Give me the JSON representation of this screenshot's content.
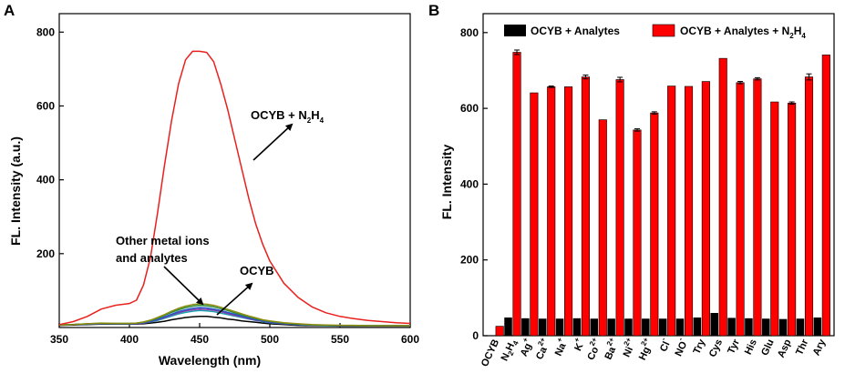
{
  "chart_data": [
    {
      "panel": "A",
      "type": "line",
      "xlabel": "Wavelength (nm)",
      "ylabel": "FL. Intensity (a.u.)",
      "xlim": [
        350,
        600
      ],
      "ylim": [
        0,
        850
      ],
      "xticks": [
        350,
        400,
        450,
        500,
        550,
        600
      ],
      "yticks": [
        200,
        400,
        600,
        800
      ],
      "x": [
        350,
        360,
        370,
        380,
        390,
        400,
        405,
        410,
        415,
        420,
        425,
        430,
        435,
        440,
        445,
        450,
        455,
        460,
        465,
        470,
        475,
        480,
        485,
        490,
        495,
        500,
        510,
        520,
        530,
        540,
        550,
        560,
        570,
        580,
        590,
        600
      ],
      "series": [
        {
          "name": "OCYB + N2H4",
          "color": "#e8201e",
          "values": [
            8,
            16,
            30,
            50,
            60,
            65,
            74,
            115,
            190,
            310,
            440,
            560,
            660,
            725,
            748,
            748,
            745,
            720,
            660,
            590,
            510,
            430,
            350,
            280,
            225,
            180,
            120,
            82,
            56,
            40,
            30,
            24,
            19,
            16,
            13,
            11
          ]
        },
        {
          "name": "analyte-olive",
          "color": "#8c8c10",
          "values": [
            7,
            8,
            10,
            12,
            11,
            11,
            12,
            15,
            20,
            27,
            35,
            44,
            52,
            58,
            62,
            64,
            63,
            60,
            55,
            49,
            43,
            37,
            31,
            26,
            21,
            18,
            13,
            10,
            8,
            7,
            6,
            6,
            5,
            5,
            5,
            5
          ]
        },
        {
          "name": "analyte-green",
          "color": "#2a8c3a",
          "values": [
            7,
            8,
            10,
            11,
            11,
            11,
            12,
            14,
            19,
            25,
            33,
            41,
            48,
            54,
            58,
            60,
            59,
            56,
            51,
            46,
            40,
            34,
            29,
            24,
            20,
            17,
            12,
            9,
            7,
            6,
            6,
            5,
            5,
            5,
            5,
            5
          ]
        },
        {
          "name": "analyte-blue",
          "color": "#2456c8",
          "values": [
            7,
            8,
            9,
            11,
            10,
            10,
            11,
            13,
            17,
            22,
            29,
            36,
            43,
            48,
            52,
            54,
            53,
            50,
            46,
            41,
            36,
            31,
            26,
            22,
            18,
            15,
            11,
            8,
            7,
            6,
            5,
            5,
            5,
            5,
            5,
            5
          ]
        },
        {
          "name": "analyte-purple",
          "color": "#8a3aa8",
          "values": [
            7,
            8,
            9,
            10,
            10,
            10,
            10,
            12,
            16,
            21,
            27,
            34,
            40,
            45,
            48,
            50,
            49,
            47,
            43,
            38,
            33,
            29,
            24,
            20,
            17,
            14,
            10,
            8,
            6,
            6,
            5,
            5,
            5,
            5,
            5,
            5
          ]
        },
        {
          "name": "analyte-teal",
          "color": "#1aa0b0",
          "values": [
            7,
            8,
            9,
            10,
            10,
            10,
            10,
            12,
            15,
            19,
            25,
            31,
            37,
            41,
            44,
            46,
            45,
            43,
            39,
            35,
            31,
            27,
            23,
            19,
            16,
            13,
            10,
            8,
            6,
            5,
            5,
            5,
            5,
            5,
            5,
            5
          ]
        },
        {
          "name": "OCYB",
          "color": "#000000",
          "values": [
            6,
            7,
            8,
            9,
            9,
            9,
            9,
            10,
            12,
            14,
            17,
            21,
            24,
            27,
            29,
            30,
            30,
            28,
            26,
            23,
            21,
            18,
            16,
            14,
            12,
            10,
            8,
            6,
            5,
            5,
            4,
            4,
            4,
            4,
            4,
            4
          ]
        }
      ],
      "annotations": [
        {
          "text": "OCYB + N",
          "sub1": "2",
          "mid": "H",
          "sub2": "4"
        },
        {
          "text": "Other metal ions"
        },
        {
          "text": "and analytes"
        },
        {
          "text": "OCYB"
        }
      ]
    },
    {
      "panel": "B",
      "type": "bar",
      "ylabel": "FL. Intensity",
      "ylim": [
        0,
        850
      ],
      "yticks": [
        0,
        200,
        400,
        600,
        800
      ],
      "legend": {
        "black": "OCYB + Analytes",
        "red": "OCYB + Analytes + N",
        "red_sub1": "2",
        "red_mid": "H",
        "red_sub2": "4"
      },
      "categories": [
        {
          "base": "OCYB",
          "sup": "",
          "sub": ""
        },
        {
          "base": "N",
          "sub": "2",
          "base2": "H",
          "sub2": "4",
          "sup": ""
        },
        {
          "base": "Ag",
          "sup": "+"
        },
        {
          "base": "Ca",
          "sup": "2+"
        },
        {
          "base": "Na",
          "sup": "+"
        },
        {
          "base": "K",
          "sup": "+"
        },
        {
          "base": "Co",
          "sup": "2+"
        },
        {
          "base": "Ba",
          "sup": "2+"
        },
        {
          "base": "Ni",
          "sup": "2+"
        },
        {
          "base": "Hg",
          "sup": "2+"
        },
        {
          "base": "Cl",
          "sup": "-"
        },
        {
          "base": "NO",
          "sup": "-"
        },
        {
          "base": "Try",
          "sup": ""
        },
        {
          "base": "Cys",
          "sup": ""
        },
        {
          "base": "Tyr",
          "sup": ""
        },
        {
          "base": "His",
          "sup": ""
        },
        {
          "base": "Glu",
          "sup": ""
        },
        {
          "base": "Asp",
          "sup": ""
        },
        {
          "base": "Thr",
          "sup": ""
        },
        {
          "base": "Ary",
          "sup": ""
        }
      ],
      "series": [
        {
          "name": "OCYB + Analytes",
          "color": "#000000",
          "values": [
            null,
            48,
            46,
            45,
            45,
            46,
            45,
            45,
            45,
            45,
            45,
            45,
            48,
            60,
            47,
            46,
            45,
            44,
            45,
            48
          ]
        },
        {
          "name": "OCYB + Analytes + N2H4",
          "color": "#ff0000",
          "values": [
            25,
            748,
            641,
            657,
            657,
            683,
            570,
            676,
            543,
            588,
            659,
            658,
            671,
            732,
            668,
            678,
            617,
            614,
            683,
            741
          ]
        }
      ],
      "errors": [
        0,
        6,
        0,
        2,
        0,
        5,
        0,
        6,
        3,
        3,
        0,
        0,
        0,
        0,
        3,
        3,
        0,
        3,
        8,
        0
      ]
    }
  ]
}
